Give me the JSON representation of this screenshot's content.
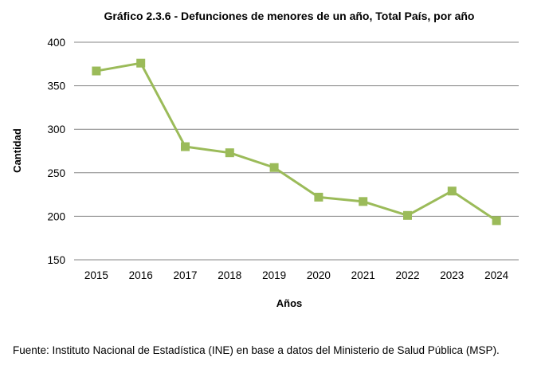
{
  "chart_data": {
    "type": "line",
    "title": "Gráfico 2.3.6 - Defunciones de menores de un año, Total País, por año",
    "xlabel": "Años",
    "ylabel": "Cantidad",
    "categories": [
      "2015",
      "2016",
      "2017",
      "2018",
      "2019",
      "2020",
      "2021",
      "2022",
      "2023",
      "2024"
    ],
    "series": [
      {
        "name": "Defunciones de menores de un año",
        "values": [
          367,
          376,
          280,
          273,
          256,
          222,
          217,
          201,
          229,
          195
        ],
        "color": "#9bbb59",
        "marker": "square"
      }
    ],
    "ylim": [
      150,
      400
    ],
    "yticks": [
      150,
      200,
      250,
      300,
      350,
      400
    ],
    "grid": true,
    "legend": "none",
    "source": "Fuente: Instituto Nacional de Estadística (INE) en base a datos del Ministerio de Salud Pública (MSP)."
  }
}
